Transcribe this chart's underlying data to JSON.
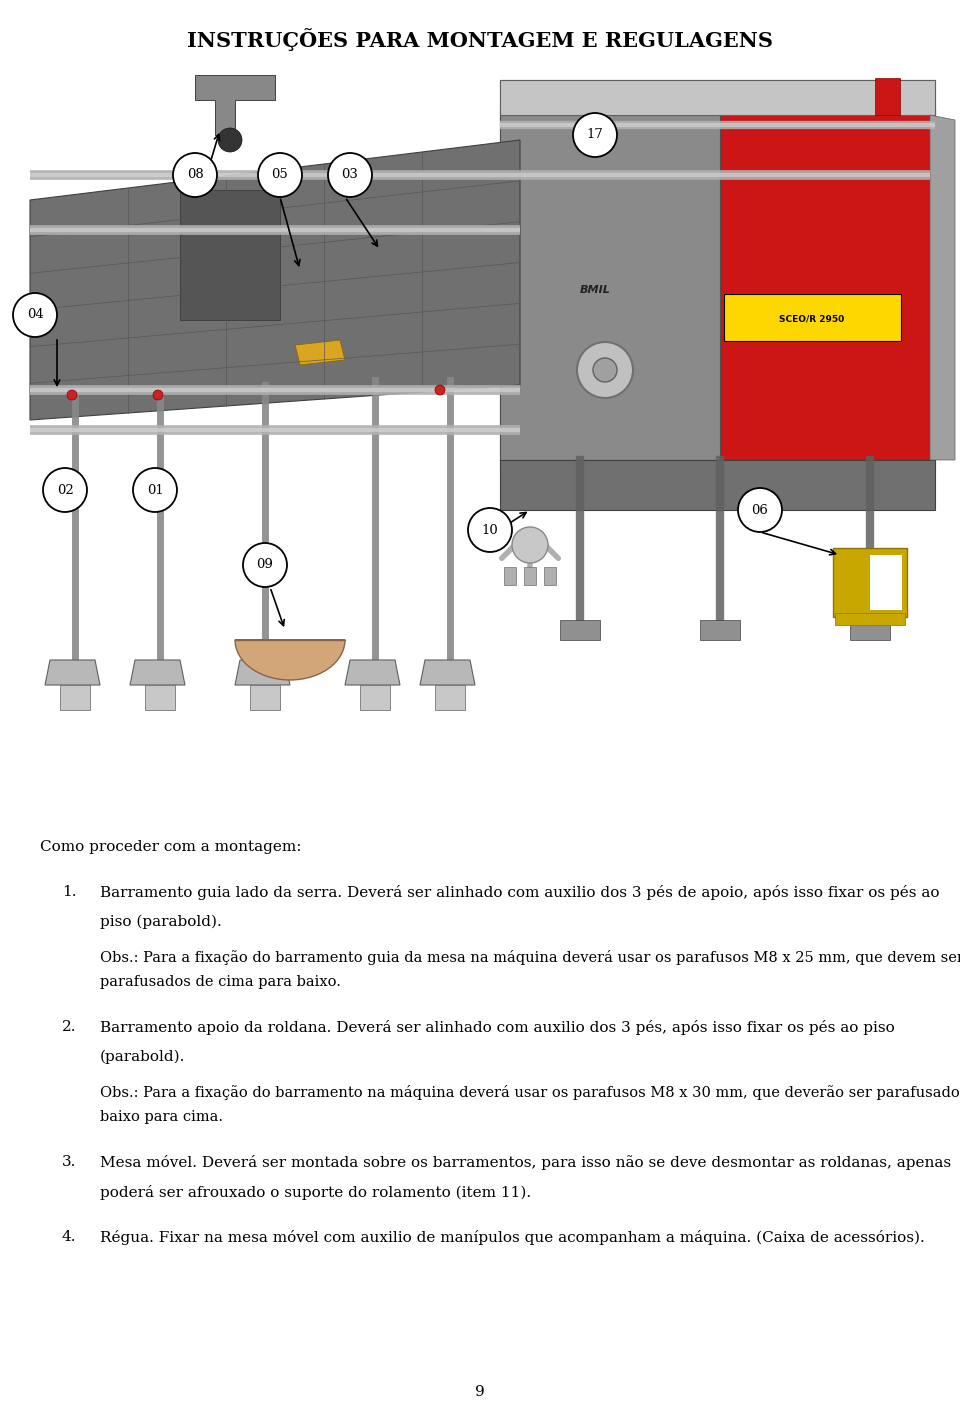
{
  "title": "INSTRUÇÕES PARA MONTAGEM E REGULAGENS",
  "title_fontsize": 15,
  "background_color": "#ffffff",
  "page_number": "9",
  "intro_text": "Como proceder com a montagem:",
  "items": [
    {
      "number": "1.",
      "text_line1": "Barramento guia lado da serra. Deverá ser alinhado com auxilio dos 3 pés de apoio, após isso fixar os pés ao",
      "text_line2": "piso (parabold).",
      "obs_line1": "Obs.: Para a fixação do barramento guia da mesa na máquina deverá usar os parafusos M8 x 25 mm, que devem ser",
      "obs_line2": "parafusados de cima para baixo."
    },
    {
      "number": "2.",
      "text_line1": "Barramento apoio da roldana. Deverá ser alinhado com auxilio dos 3 pés, após isso fixar os pés ao piso",
      "text_line2": "(parabold).",
      "obs_line1": "Obs.: Para a fixação do barramento na máquina deverá usar os parafusos M8 x 30 mm, que deverão ser parafusados de",
      "obs_line2": "baixo para cima."
    },
    {
      "number": "3.",
      "text_line1": "Mesa móvel. Deverá ser montada sobre os barramentos, para isso não se deve desmontar as roldanas, apenas",
      "text_line2": "poderá ser afrouxado o suporte do rolamento (item 11).",
      "obs_line1": "",
      "obs_line2": ""
    },
    {
      "number": "4.",
      "text_line1": "Régua. Fixar na mesa móvel com auxilio de manípulos que acompanham a máquina. (Caixa de acessórios).",
      "text_line2": "",
      "obs_line1": "",
      "obs_line2": ""
    }
  ],
  "text_fontsize": 11,
  "obs_fontsize": 10.5
}
